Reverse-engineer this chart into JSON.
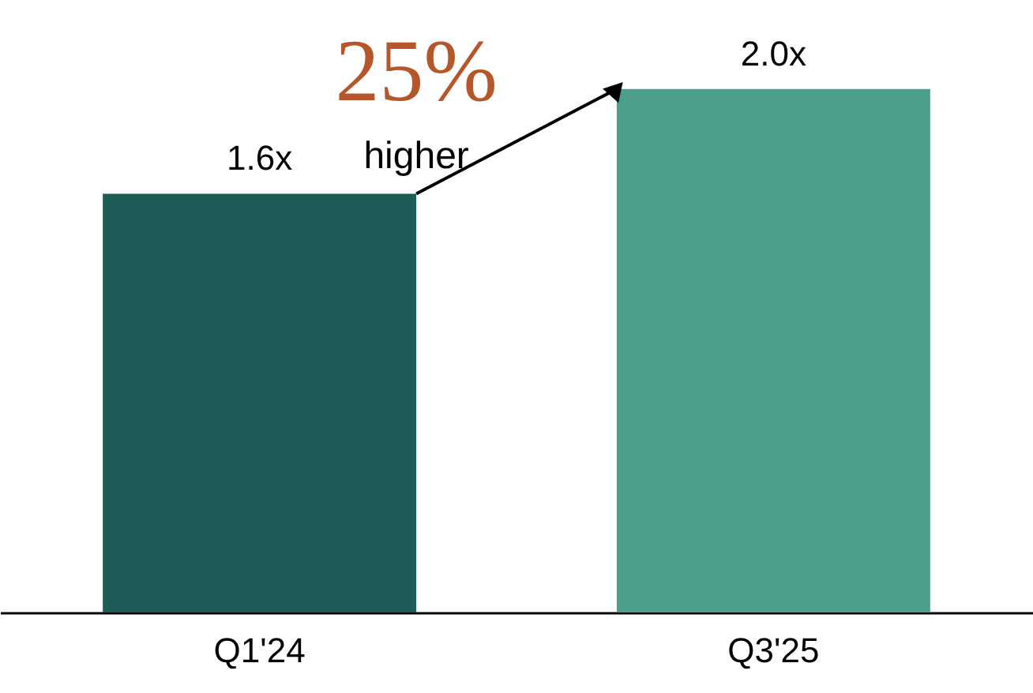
{
  "chart_data": {
    "type": "bar",
    "categories": [
      "Q1'24",
      "Q3'25"
    ],
    "values": [
      1.6,
      2.0
    ],
    "colors": [
      "#1f5c58",
      "#4c9f8a"
    ],
    "value_labels": [
      "1.6x",
      "2.0x"
    ],
    "annotations": [
      "25%",
      "higher"
    ]
  }
}
